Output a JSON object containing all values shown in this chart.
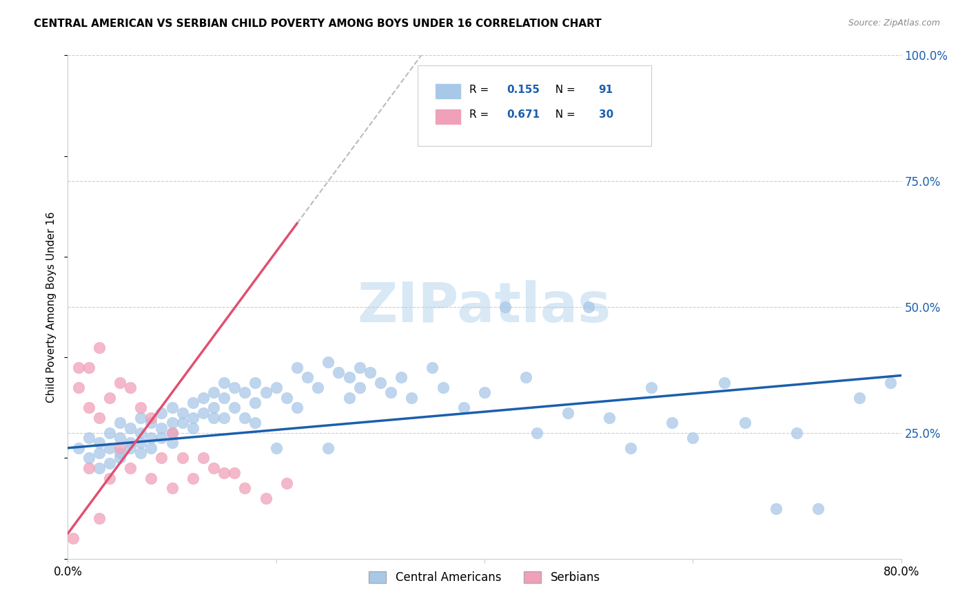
{
  "title": "CENTRAL AMERICAN VS SERBIAN CHILD POVERTY AMONG BOYS UNDER 16 CORRELATION CHART",
  "source": "Source: ZipAtlas.com",
  "ylabel": "Child Poverty Among Boys Under 16",
  "xlim": [
    0.0,
    0.8
  ],
  "ylim": [
    0.0,
    1.0
  ],
  "r_blue": 0.155,
  "n_blue": 91,
  "r_pink": 0.671,
  "n_pink": 30,
  "blue_color": "#a8c8e8",
  "pink_color": "#f0a0b8",
  "blue_line_color": "#1a5fad",
  "pink_line_color": "#e05070",
  "grid_color": "#cccccc",
  "watermark": "ZIPatlas",
  "watermark_color": "#d8e8f5",
  "blue_scatter_x": [
    0.01,
    0.02,
    0.02,
    0.03,
    0.03,
    0.03,
    0.04,
    0.04,
    0.04,
    0.05,
    0.05,
    0.05,
    0.05,
    0.06,
    0.06,
    0.06,
    0.07,
    0.07,
    0.07,
    0.07,
    0.08,
    0.08,
    0.08,
    0.09,
    0.09,
    0.09,
    0.1,
    0.1,
    0.1,
    0.1,
    0.11,
    0.11,
    0.12,
    0.12,
    0.12,
    0.13,
    0.13,
    0.14,
    0.14,
    0.14,
    0.15,
    0.15,
    0.15,
    0.16,
    0.16,
    0.17,
    0.17,
    0.18,
    0.18,
    0.18,
    0.19,
    0.2,
    0.2,
    0.21,
    0.22,
    0.22,
    0.23,
    0.24,
    0.25,
    0.25,
    0.26,
    0.27,
    0.27,
    0.28,
    0.28,
    0.29,
    0.3,
    0.31,
    0.32,
    0.33,
    0.35,
    0.36,
    0.38,
    0.4,
    0.42,
    0.44,
    0.45,
    0.48,
    0.5,
    0.52,
    0.54,
    0.56,
    0.58,
    0.6,
    0.63,
    0.65,
    0.68,
    0.7,
    0.72,
    0.76,
    0.79
  ],
  "blue_scatter_y": [
    0.22,
    0.2,
    0.24,
    0.21,
    0.23,
    0.18,
    0.25,
    0.22,
    0.19,
    0.24,
    0.21,
    0.27,
    0.2,
    0.26,
    0.23,
    0.22,
    0.28,
    0.25,
    0.23,
    0.21,
    0.27,
    0.24,
    0.22,
    0.29,
    0.26,
    0.24,
    0.3,
    0.27,
    0.25,
    0.23,
    0.29,
    0.27,
    0.31,
    0.28,
    0.26,
    0.32,
    0.29,
    0.33,
    0.3,
    0.28,
    0.35,
    0.32,
    0.28,
    0.34,
    0.3,
    0.33,
    0.28,
    0.35,
    0.31,
    0.27,
    0.33,
    0.34,
    0.22,
    0.32,
    0.38,
    0.3,
    0.36,
    0.34,
    0.39,
    0.22,
    0.37,
    0.36,
    0.32,
    0.38,
    0.34,
    0.37,
    0.35,
    0.33,
    0.36,
    0.32,
    0.38,
    0.34,
    0.3,
    0.33,
    0.5,
    0.36,
    0.25,
    0.29,
    0.5,
    0.28,
    0.22,
    0.34,
    0.27,
    0.24,
    0.35,
    0.27,
    0.1,
    0.25,
    0.1,
    0.32,
    0.35
  ],
  "pink_scatter_x": [
    0.005,
    0.01,
    0.01,
    0.02,
    0.02,
    0.02,
    0.03,
    0.03,
    0.03,
    0.04,
    0.04,
    0.05,
    0.05,
    0.06,
    0.06,
    0.07,
    0.08,
    0.08,
    0.09,
    0.1,
    0.1,
    0.11,
    0.12,
    0.13,
    0.14,
    0.15,
    0.16,
    0.17,
    0.19,
    0.21
  ],
  "pink_scatter_y": [
    0.04,
    0.38,
    0.34,
    0.38,
    0.3,
    0.18,
    0.42,
    0.28,
    0.08,
    0.32,
    0.16,
    0.35,
    0.22,
    0.34,
    0.18,
    0.3,
    0.28,
    0.16,
    0.2,
    0.25,
    0.14,
    0.2,
    0.16,
    0.2,
    0.18,
    0.17,
    0.17,
    0.14,
    0.12,
    0.15
  ],
  "pink_slope": 2.8,
  "pink_intercept": 0.05,
  "blue_slope": 0.18,
  "blue_intercept": 0.22
}
